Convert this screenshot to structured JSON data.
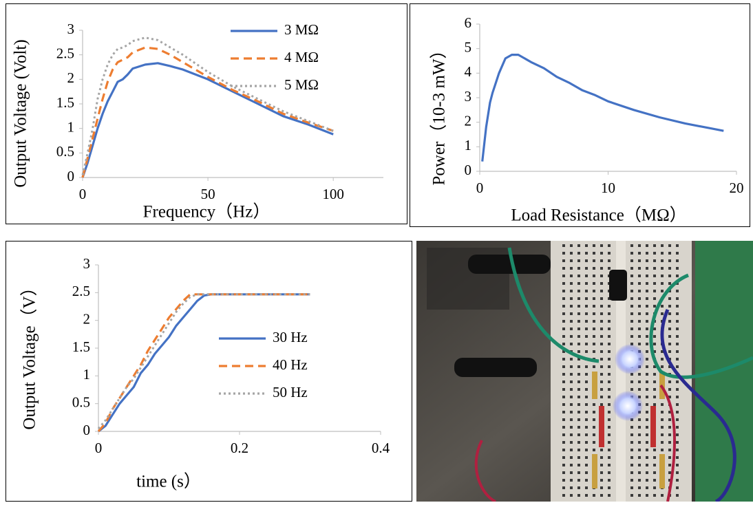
{
  "chart_data": [
    {
      "type": "line",
      "xlabel": "Frequency（Hz）",
      "ylabel": "Output Voltage (Volt)",
      "x": [
        0,
        2,
        4,
        6,
        8,
        10,
        12,
        14,
        16,
        18,
        20,
        25,
        30,
        35,
        40,
        50,
        60,
        70,
        80,
        90,
        100
      ],
      "series": [
        {
          "name": "3 MΩ",
          "color": "#4472c4",
          "line_style": "solid",
          "values": [
            0,
            0.3,
            0.65,
            1.0,
            1.3,
            1.55,
            1.75,
            1.95,
            2.0,
            2.1,
            2.22,
            2.3,
            2.33,
            2.27,
            2.2,
            2.0,
            1.75,
            1.5,
            1.25,
            1.08,
            0.88
          ]
        },
        {
          "name": "4 MΩ",
          "color": "#ed7d31",
          "line_style": "dashed",
          "values": [
            0,
            0.4,
            0.8,
            1.2,
            1.6,
            1.95,
            2.2,
            2.35,
            2.4,
            2.45,
            2.55,
            2.65,
            2.62,
            2.5,
            2.35,
            2.05,
            1.78,
            1.55,
            1.3,
            1.12,
            0.95
          ]
        },
        {
          "name": "5 MΩ",
          "color": "#a5a5a5",
          "line_style": "dotted",
          "values": [
            0.05,
            0.5,
            1.0,
            1.6,
            2.0,
            2.3,
            2.5,
            2.62,
            2.65,
            2.7,
            2.78,
            2.85,
            2.8,
            2.65,
            2.5,
            2.15,
            1.85,
            1.6,
            1.35,
            1.15,
            0.95
          ]
        }
      ],
      "xlim": [
        0,
        120
      ],
      "ylim": [
        0,
        3
      ],
      "xticks": [
        0,
        50,
        100
      ],
      "yticks": [
        0,
        0.5,
        1,
        1.5,
        2,
        2.5,
        3
      ],
      "legend": "upper right"
    },
    {
      "type": "line",
      "xlabel": "Load Resistance（MΩ）",
      "ylabel": "Power（10-3 mW）",
      "x": [
        0.2,
        0.5,
        0.8,
        1,
        1.5,
        2,
        2.5,
        3,
        3.5,
        4,
        5,
        6,
        7,
        8,
        9,
        10,
        12,
        14,
        16,
        18,
        19
      ],
      "values": [
        0.4,
        1.8,
        2.8,
        3.2,
        4.0,
        4.6,
        4.75,
        4.75,
        4.6,
        4.45,
        4.2,
        3.85,
        3.6,
        3.3,
        3.1,
        2.85,
        2.5,
        2.2,
        1.95,
        1.75,
        1.65
      ],
      "color": "#4472c4",
      "xlim": [
        0,
        20
      ],
      "ylim": [
        0,
        6
      ],
      "xticks": [
        0,
        10,
        20
      ],
      "yticks": [
        0,
        1,
        2,
        3,
        4,
        5,
        6
      ]
    },
    {
      "type": "line",
      "xlabel": "time (s）",
      "ylabel": "Output Voltage（V）",
      "x": [
        0,
        0.01,
        0.02,
        0.03,
        0.04,
        0.05,
        0.06,
        0.07,
        0.08,
        0.09,
        0.1,
        0.11,
        0.12,
        0.13,
        0.14,
        0.15,
        0.16,
        0.2,
        0.25,
        0.3
      ],
      "series": [
        {
          "name": "30 Hz",
          "color": "#4472c4",
          "line_style": "solid",
          "values": [
            0,
            0.1,
            0.3,
            0.5,
            0.65,
            0.8,
            1.05,
            1.2,
            1.4,
            1.55,
            1.7,
            1.9,
            2.05,
            2.2,
            2.35,
            2.45,
            2.47,
            2.47,
            2.47,
            2.47
          ]
        },
        {
          "name": "40 Hz",
          "color": "#ed7d31",
          "line_style": "dashed",
          "values": [
            0,
            0.15,
            0.4,
            0.6,
            0.8,
            1.0,
            1.2,
            1.45,
            1.65,
            1.85,
            2.05,
            2.2,
            2.35,
            2.47,
            2.47,
            2.47,
            2.47,
            2.47,
            2.47,
            2.47
          ]
        },
        {
          "name": "50 Hz",
          "color": "#a5a5a5",
          "line_style": "dotted",
          "values": [
            0.05,
            0.2,
            0.4,
            0.6,
            0.8,
            0.95,
            1.15,
            1.35,
            1.55,
            1.75,
            1.95,
            2.15,
            2.3,
            2.42,
            2.47,
            2.47,
            2.47,
            2.47,
            2.47,
            2.47
          ]
        }
      ],
      "xlim": [
        0,
        0.4
      ],
      "ylim": [
        0,
        3
      ],
      "xticks": [
        0,
        0.2,
        0.4
      ],
      "yticks": [
        0,
        0.5,
        1,
        1.5,
        2,
        2.5,
        3
      ],
      "legend": "center right"
    }
  ]
}
